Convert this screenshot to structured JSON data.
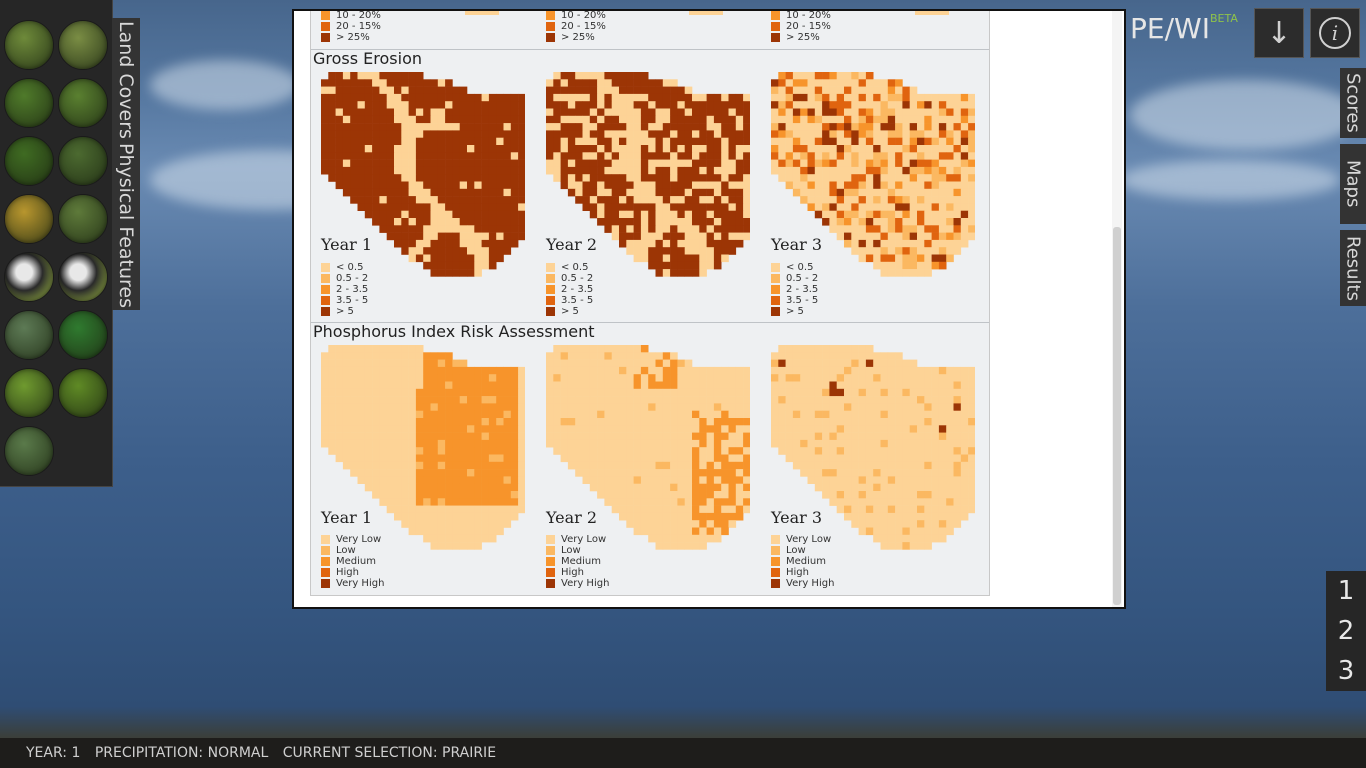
{
  "app": {
    "title": "PE/WI",
    "beta": "BETA"
  },
  "left_tabs": {
    "land_covers": "Land Covers",
    "physical_features": "Physical Features"
  },
  "right_tabs": {
    "scores": "Scores",
    "maps": "Maps",
    "results": "Results"
  },
  "top_buttons": {
    "download_icon": "↓",
    "info_icon": "i"
  },
  "year_buttons": [
    "1",
    "2",
    "3"
  ],
  "land_cover_icons": [
    "corn-icon",
    "soybean-icon",
    "alfalfa-icon",
    "strawberry-icon",
    "forest-icon",
    "mixed-fruit-icon",
    "hay-icon",
    "grass-icon",
    "dairy-cow-icon",
    "beef-cow-icon",
    "wetland-icon",
    "prairie-icon",
    "conifer-icon",
    "deciduous-icon",
    "shrub-icon"
  ],
  "colors": {
    "c1": "#fdd396",
    "c2": "#fbb861",
    "c3": "#f7942b",
    "c4": "#e0640f",
    "c5": "#9c3505"
  },
  "top_section": {
    "legend": [
      "10 - 20%",
      "20 - 15%",
      "> 25%"
    ]
  },
  "gross_erosion": {
    "title": "Gross Erosion",
    "years": [
      "Year 1",
      "Year 2",
      "Year 3"
    ],
    "legend": [
      "< 0.5",
      "0.5 - 2",
      "2 - 3.5",
      "3.5 - 5",
      "> 5"
    ]
  },
  "phosphorus": {
    "title": "Phosphorus Index Risk Assessment",
    "years": [
      "Year 1",
      "Year 2",
      "Year 3"
    ],
    "legend": [
      "Very Low",
      "Low",
      "Medium",
      "High",
      "Very High"
    ]
  },
  "footer": {
    "year": "YEAR: 1",
    "precipitation": "PRECIPITATION: NORMAL",
    "selection": "CURRENT SELECTION: PRAIRIE"
  }
}
